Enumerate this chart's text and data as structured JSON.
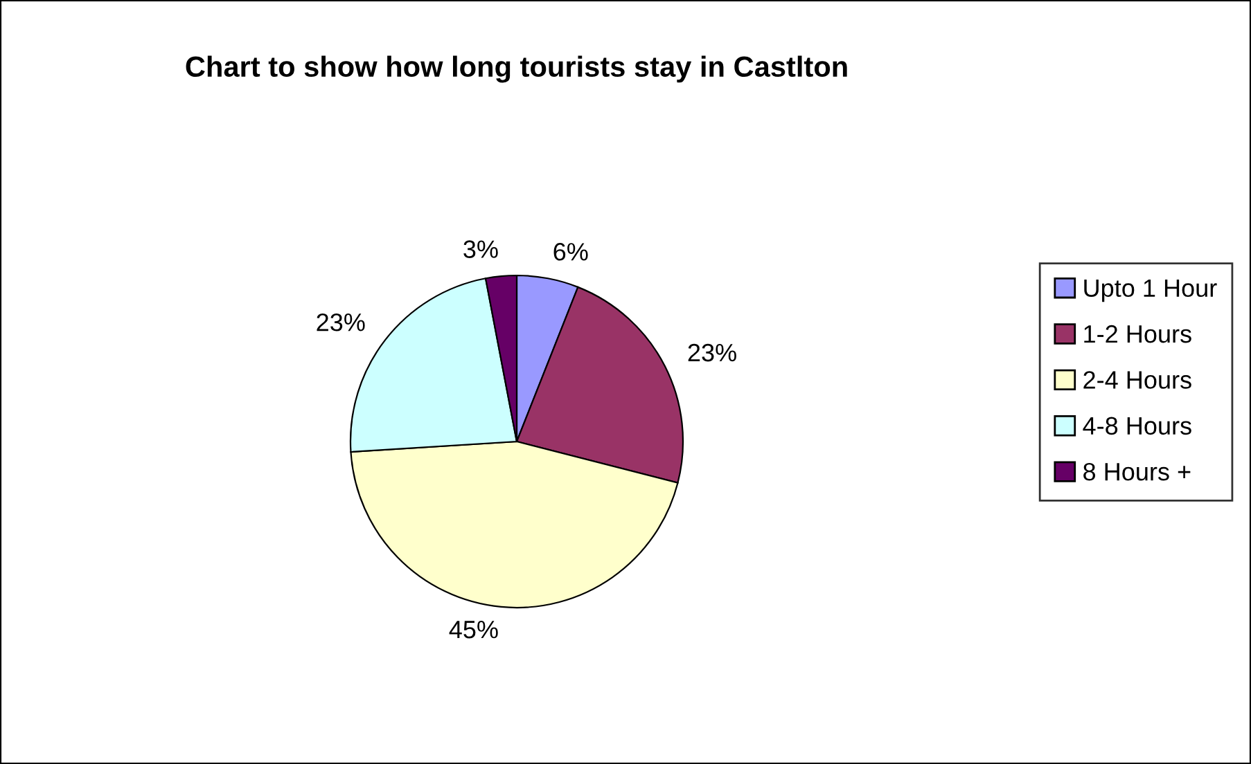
{
  "chart_data": {
    "type": "pie",
    "title": "Chart to show how long tourists stay in Castlton",
    "categories": [
      "Upto 1 Hour",
      "1-2 Hours",
      "2-4 Hours",
      "4-8 Hours",
      "8 Hours +"
    ],
    "values": [
      6,
      23,
      45,
      23,
      3
    ],
    "value_labels": [
      "6%",
      "23%",
      "45%",
      "23%",
      "3%"
    ],
    "colors": [
      "#9999ff",
      "#993366",
      "#ffffcc",
      "#ccffff",
      "#660066"
    ],
    "legend": "right"
  }
}
